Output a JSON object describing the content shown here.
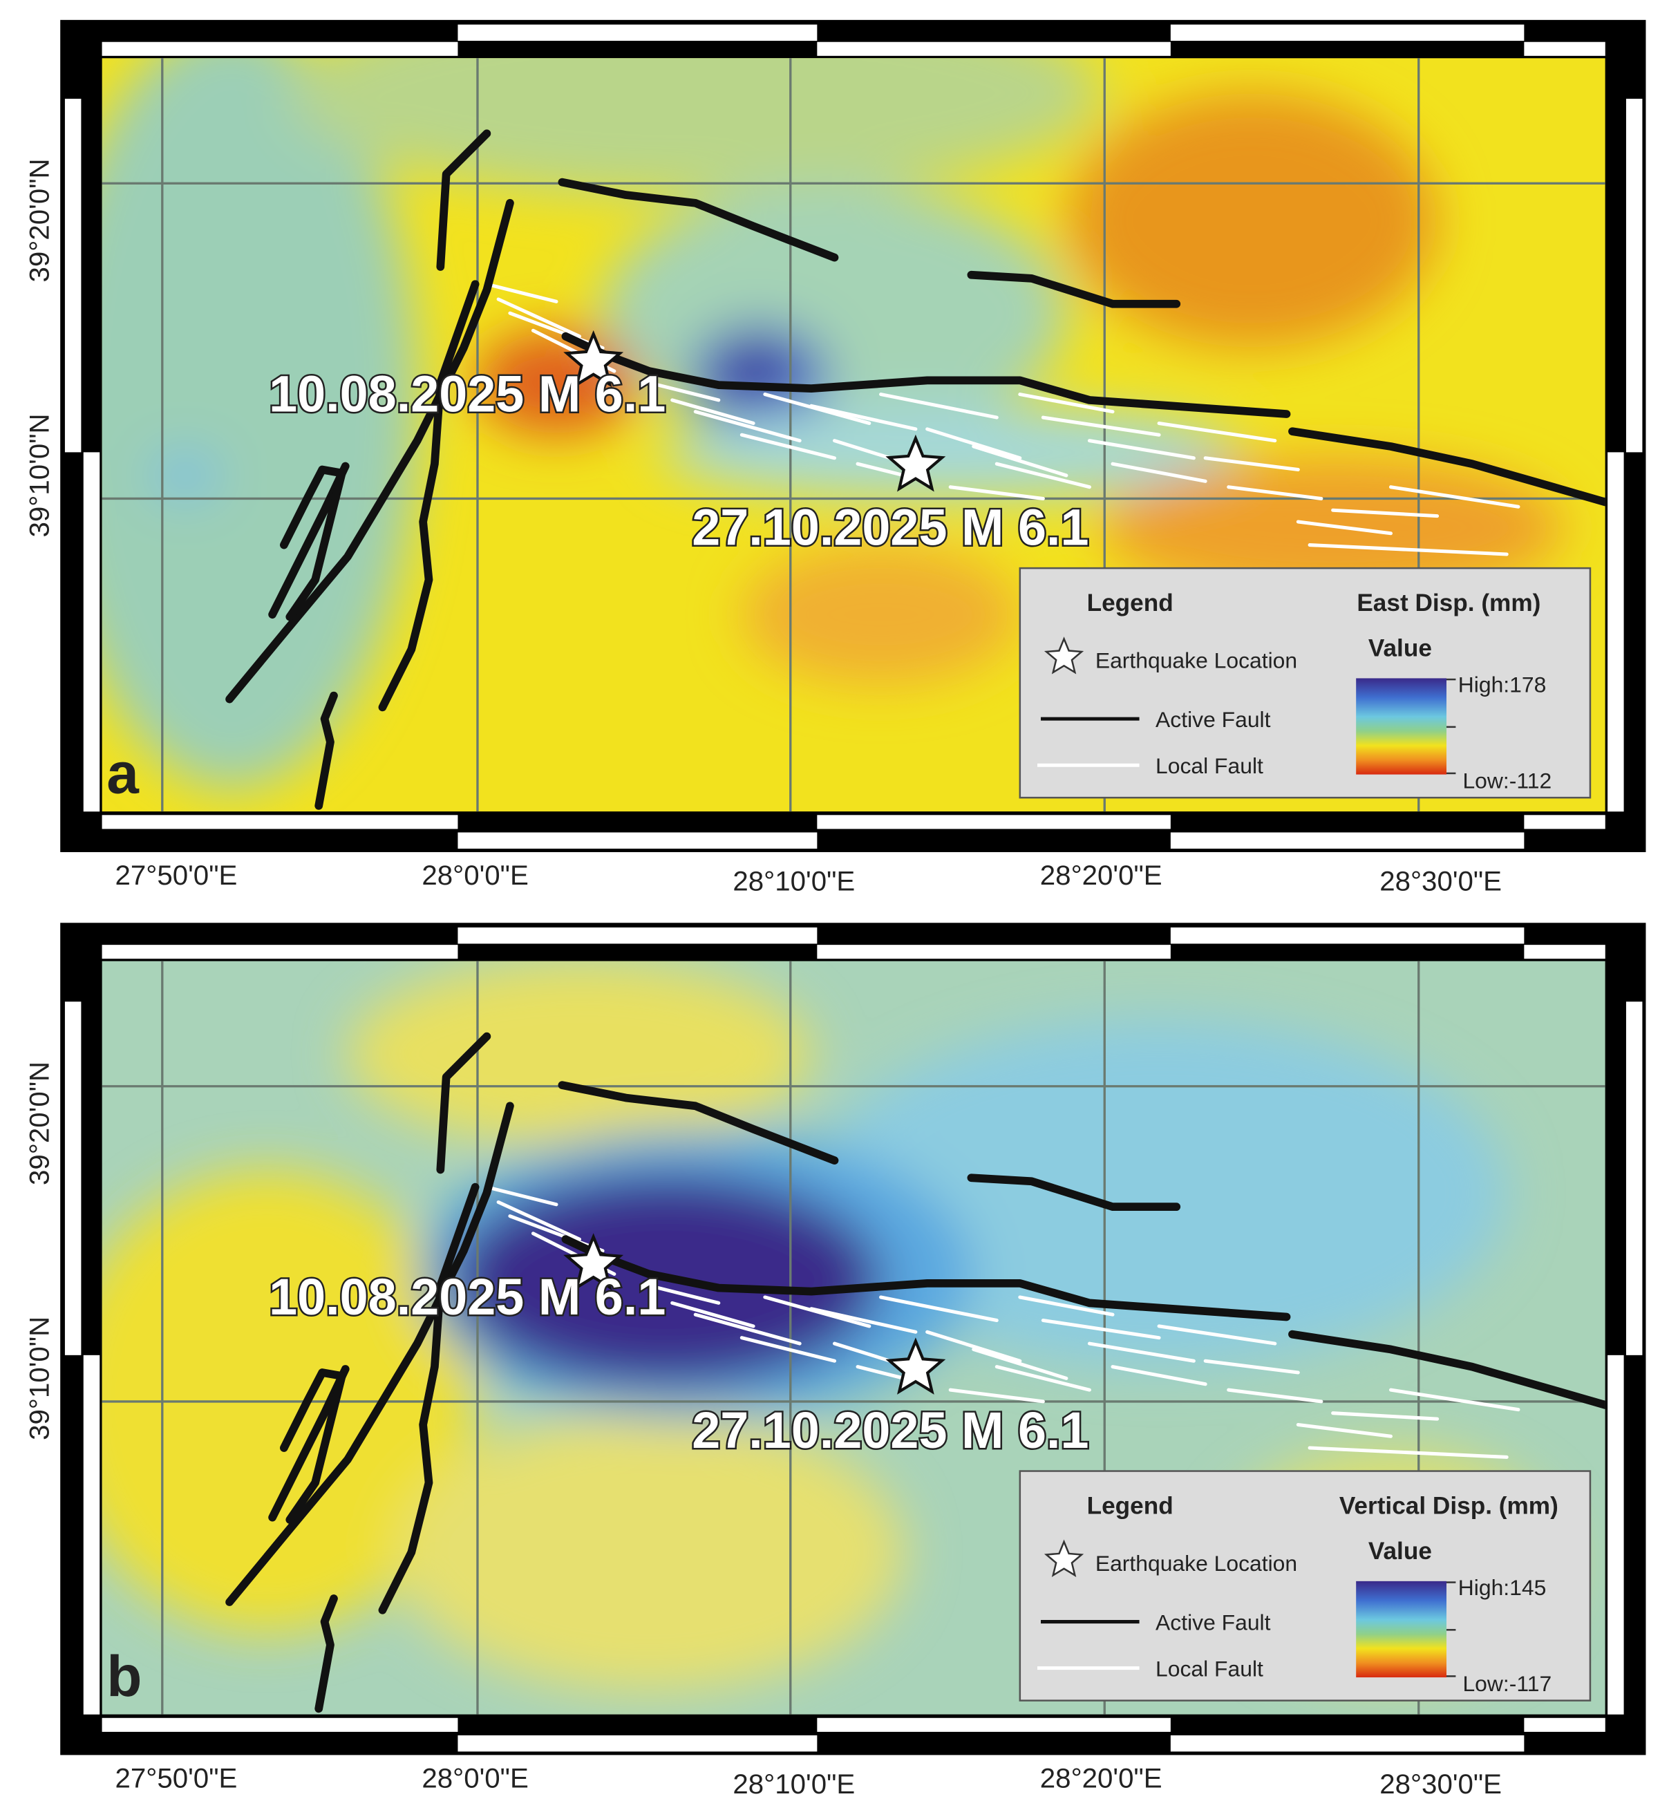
{
  "panels": [
    {
      "label": "a",
      "lat_labels": [
        "39°20'0\"N",
        "39°10'0\"N"
      ],
      "lon_labels": [
        "27°50'0\"E",
        "28°0'0\"E",
        "28°10'0\"E",
        "28°20'0\"E",
        "28°30'0\"E"
      ],
      "annotations": [
        "10.08.2025 M 6.1",
        "27.10.2025 M 6.1"
      ],
      "legend": {
        "title": "Legend",
        "items": [
          "Earthquake Location",
          "Active Fault",
          "Local Fault"
        ],
        "scale_title": "East Disp. (mm)",
        "value_title": "Value",
        "high": "High:178",
        "low": "Low:-112"
      }
    },
    {
      "label": "b",
      "lat_labels": [
        "39°20'0\"N",
        "39°10'0\"N"
      ],
      "lon_labels": [
        "27°50'0\"E",
        "28°0'0\"E",
        "28°10'0\"E",
        "28°20'0\"E",
        "28°30'0\"E"
      ],
      "annotations": [
        "10.08.2025 M 6.1",
        "27.10.2025 M 6.1"
      ],
      "legend": {
        "title": "Legend",
        "items": [
          "Earthquake Location",
          "Active Fault",
          "Local Fault"
        ],
        "scale_title": "Vertical Disp. (mm)",
        "value_title": "Value",
        "high": "High:145",
        "low": "Low:-117"
      }
    }
  ]
}
